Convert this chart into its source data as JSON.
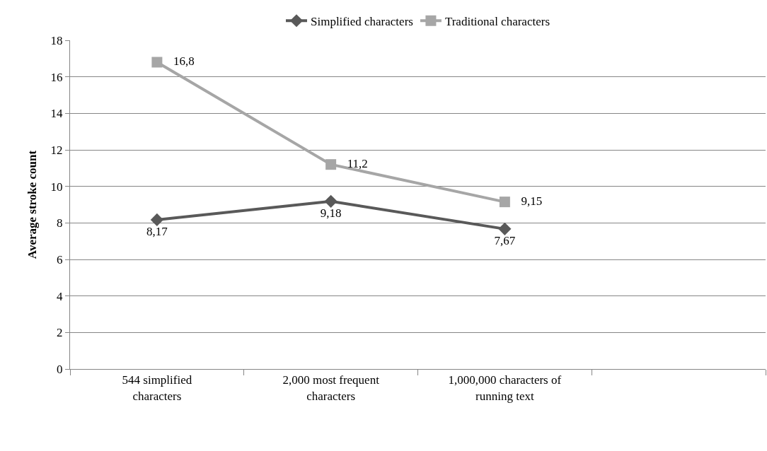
{
  "chart_data": {
    "type": "line",
    "ylabel": "Average stroke count",
    "categories": [
      "544 simplified characters",
      "2,000 most frequent characters",
      "1,000,000 characters of running text",
      null
    ],
    "series": [
      {
        "name": "Simplified characters",
        "color": "#595959",
        "marker": "diamond",
        "values": [
          8.17,
          9.18,
          7.67,
          null
        ],
        "value_labels": [
          "8,17",
          "9,18",
          "7,67",
          null
        ]
      },
      {
        "name": "Traditional characters",
        "color": "#a6a6a6",
        "marker": "square",
        "values": [
          16.8,
          11.2,
          9.15,
          null
        ],
        "value_labels": [
          "16,8",
          "11,2",
          "9,15",
          null
        ]
      }
    ],
    "ylim": [
      0,
      18
    ],
    "yticks": [
      0,
      2,
      4,
      6,
      8,
      10,
      12,
      14,
      16,
      18
    ],
    "grid": "y",
    "legend": "top"
  }
}
